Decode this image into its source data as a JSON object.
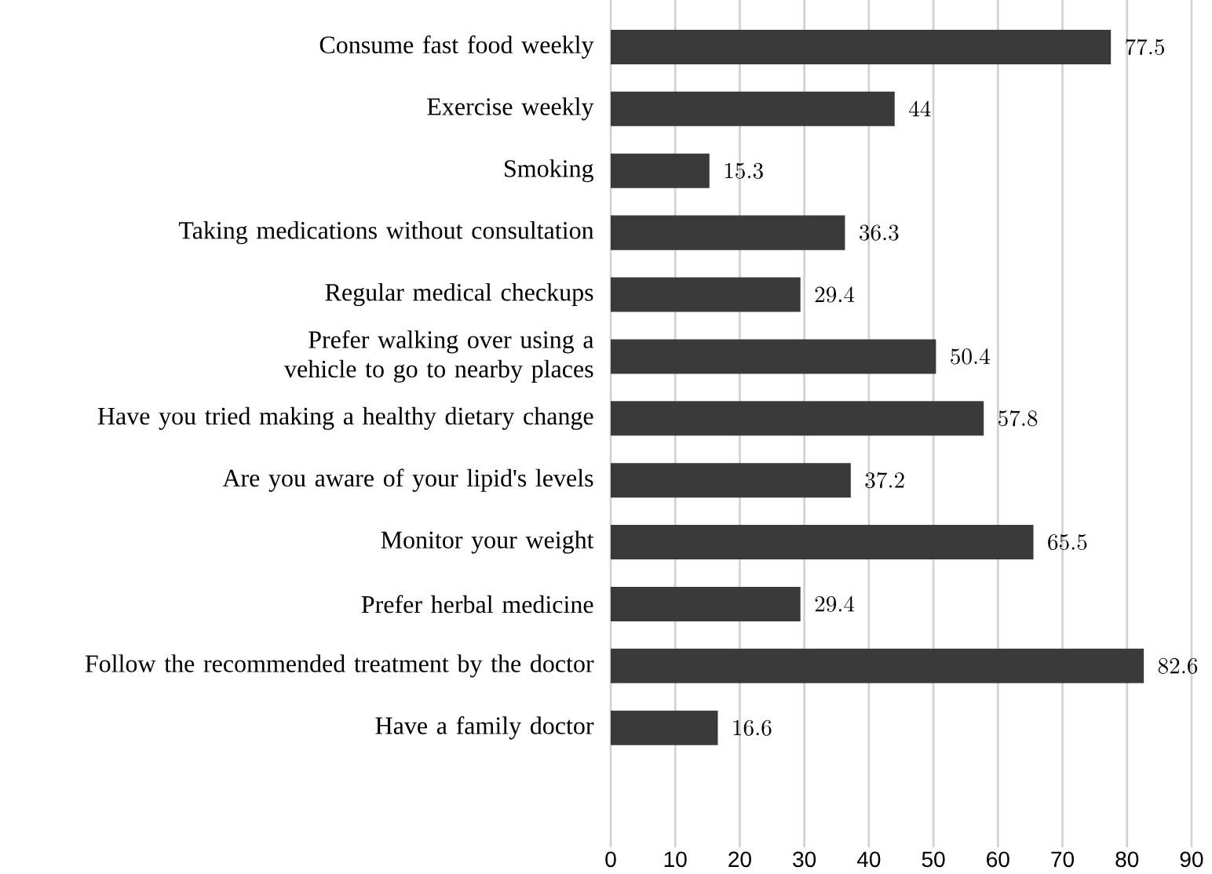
{
  "chart_data": {
    "type": "bar",
    "orientation": "horizontal",
    "categories": [
      "Consume fast food weekly",
      "Exercise weekly",
      "Smoking",
      "Taking medications without consultation",
      "Regular medical checkups",
      "Prefer walking over using a vehicle to go to nearby places",
      "Have you tried making a healthy dietary change",
      "Are you aware of your lipid's levels",
      "Monitor your weight",
      "Prefer herbal medicine",
      "Follow the recommended treatment by the doctor",
      "Have a family doctor"
    ],
    "values": [
      77.5,
      44,
      15.3,
      36.3,
      29.4,
      50.4,
      57.8,
      37.2,
      65.5,
      29.4,
      82.6,
      16.6
    ],
    "color": "#3a3a3a",
    "xlim": [
      0,
      90
    ],
    "xticks": [
      0,
      10,
      20,
      30,
      40,
      50,
      60,
      70,
      80,
      90
    ],
    "grid": "x",
    "data_labels": true
  }
}
